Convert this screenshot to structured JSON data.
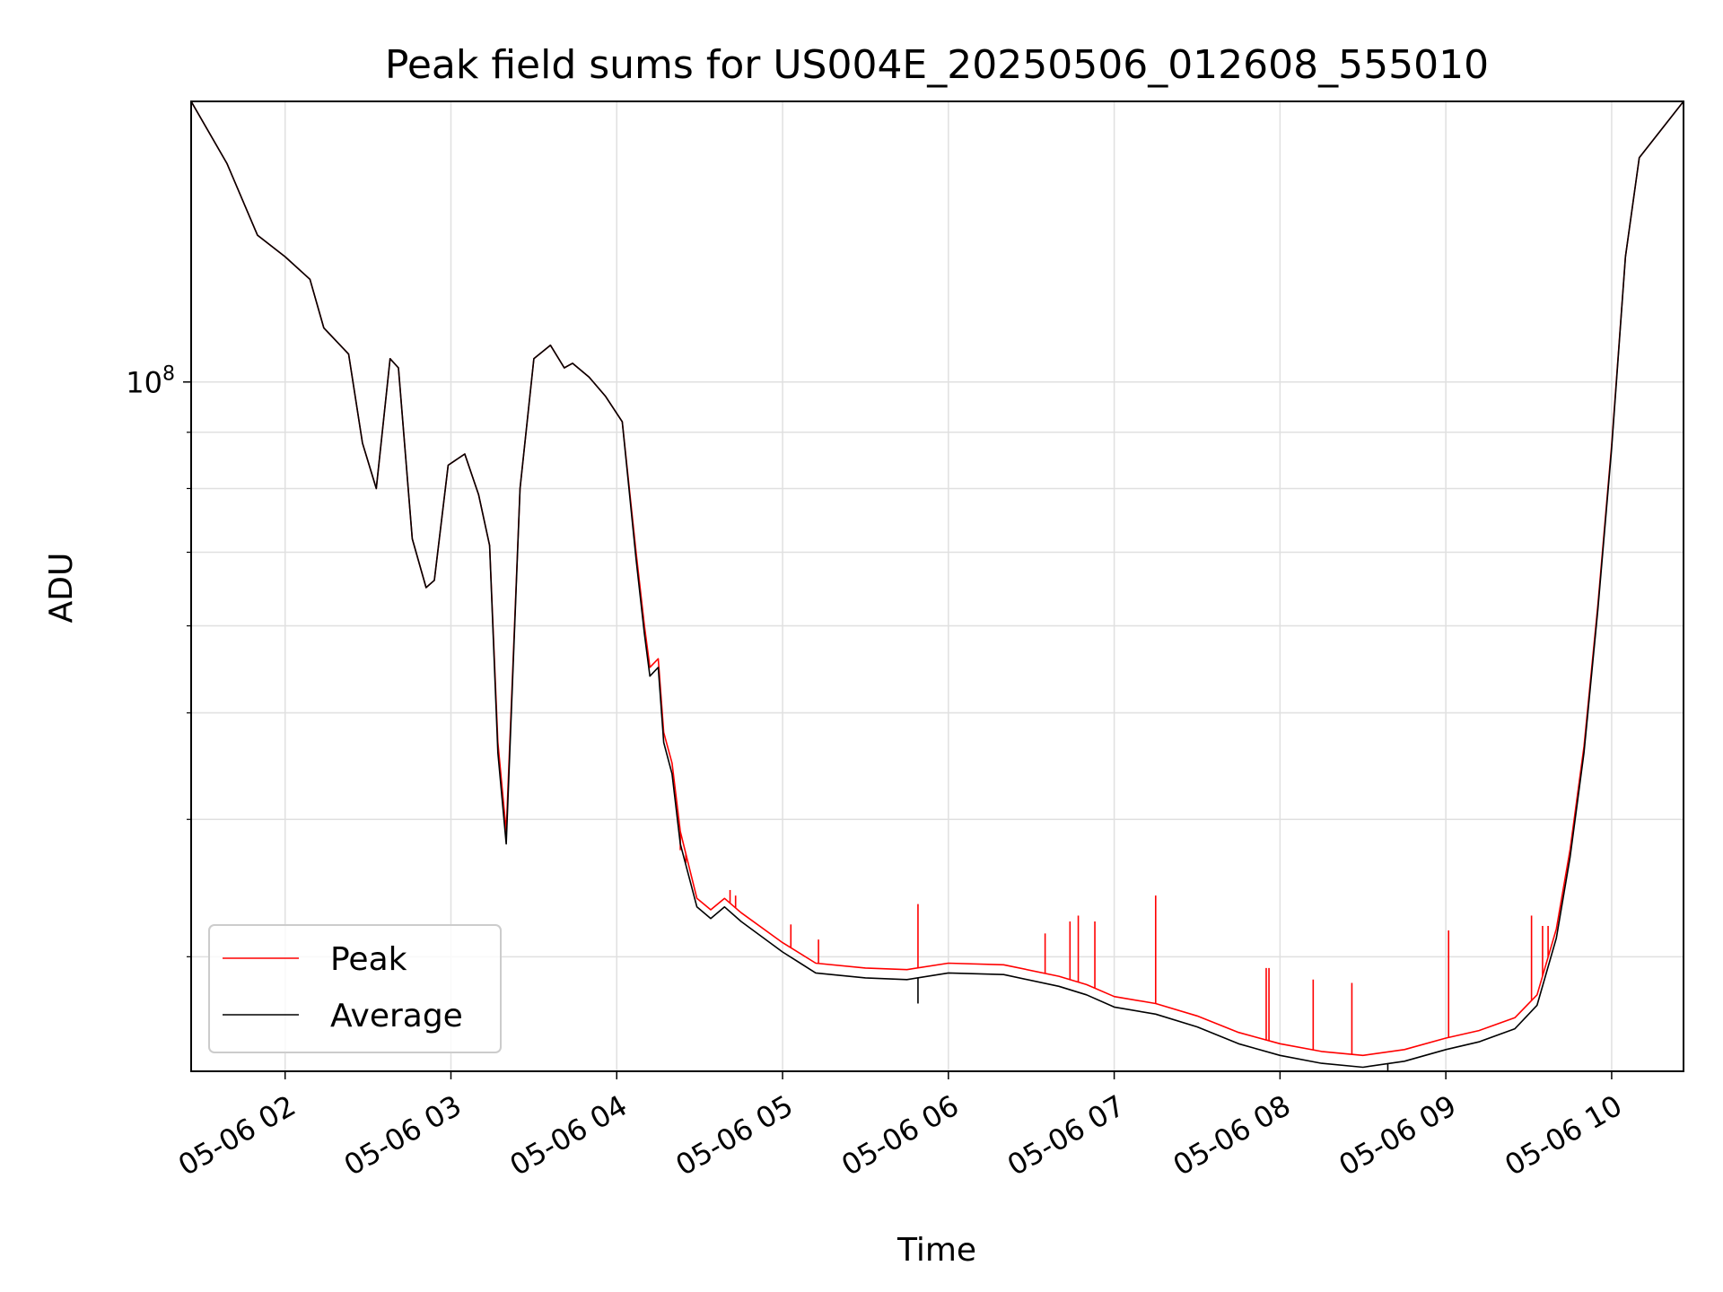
{
  "chart_data": {
    "type": "line",
    "title": "Peak field sums for US004E_20250506_012608_555010",
    "xlabel": "Time",
    "ylabel": "ADU",
    "y_scale": "log",
    "ylim": [
      23600000,
      180000000
    ],
    "xlim": [
      "2025-05-06 01:26",
      "2025-05-06 10:26"
    ],
    "x_ticks": [
      "05-06 02",
      "05-06 03",
      "05-06 04",
      "05-06 05",
      "05-06 06",
      "05-06 07",
      "05-06 08",
      "05-06 09",
      "05-06 10"
    ],
    "y_tick_label": {
      "base": "10",
      "exp": "8",
      "value": 100000000
    },
    "grid": true,
    "legend": {
      "position": "lower-left",
      "entries": [
        "Peak",
        "Average"
      ]
    },
    "colors": {
      "Peak": "#ff0000",
      "Average": "#000000"
    },
    "series": [
      {
        "name": "Average",
        "x": [
          "2025-05-06 01:26",
          "2025-05-06 01:39",
          "2025-05-06 01:50",
          "2025-05-06 02:00",
          "2025-05-06 02:09",
          "2025-05-06 02:14",
          "2025-05-06 02:23",
          "2025-05-06 02:28",
          "2025-05-06 02:33",
          "2025-05-06 02:38",
          "2025-05-06 02:41",
          "2025-05-06 02:46",
          "2025-05-06 02:51",
          "2025-05-06 02:54",
          "2025-05-06 02:59",
          "2025-05-06 03:05",
          "2025-05-06 03:10",
          "2025-05-06 03:14",
          "2025-05-06 03:17",
          "2025-05-06 03:20",
          "2025-05-06 03:25",
          "2025-05-06 03:30",
          "2025-05-06 03:36",
          "2025-05-06 03:41",
          "2025-05-06 03:44",
          "2025-05-06 03:50",
          "2025-05-06 03:56",
          "2025-05-06 04:02",
          "2025-05-06 04:07",
          "2025-05-06 04:10",
          "2025-05-06 04:12",
          "2025-05-06 04:15",
          "2025-05-06 04:17",
          "2025-05-06 04:20",
          "2025-05-06 04:23",
          "2025-05-06 04:29",
          "2025-05-06 04:34",
          "2025-05-06 04:39",
          "2025-05-06 04:45",
          "2025-05-06 05:00",
          "2025-05-06 05:12",
          "2025-05-06 05:30",
          "2025-05-06 05:45",
          "2025-05-06 06:00",
          "2025-05-06 06:20",
          "2025-05-06 06:40",
          "2025-05-06 06:50",
          "2025-05-06 07:00",
          "2025-05-06 07:15",
          "2025-05-06 07:30",
          "2025-05-06 07:45",
          "2025-05-06 08:00",
          "2025-05-06 08:15",
          "2025-05-06 08:30",
          "2025-05-06 08:45",
          "2025-05-06 09:00",
          "2025-05-06 09:12",
          "2025-05-06 09:25",
          "2025-05-06 09:33",
          "2025-05-06 09:40",
          "2025-05-06 09:45",
          "2025-05-06 09:50",
          "2025-05-06 09:55",
          "2025-05-06 10:00",
          "2025-05-06 10:05",
          "2025-05-06 10:10",
          "2025-05-06 10:26"
        ],
        "y": [
          180000000,
          158000000,
          136000000,
          130000000,
          124000000,
          112000000,
          106000000,
          88000000,
          80000000,
          105000000,
          103000000,
          72000000,
          65000000,
          66000000,
          84000000,
          86000000,
          79000000,
          71000000,
          46000000,
          38000000,
          80000000,
          105000000,
          108000000,
          103000000,
          104000000,
          101000000,
          97000000,
          92000000,
          69000000,
          59000000,
          54000000,
          55000000,
          47000000,
          44000000,
          38000000,
          33300000,
          32500000,
          33300000,
          32300000,
          30300000,
          29000000,
          28700000,
          28600000,
          29000000,
          28900000,
          28200000,
          27700000,
          27000000,
          26600000,
          25900000,
          25000000,
          24400000,
          24000000,
          23800000,
          24100000,
          24700000,
          25100000,
          25800000,
          27100000,
          31200000,
          37000000,
          46000000,
          62000000,
          87000000,
          130000000,
          160000000,
          180000000
        ]
      },
      {
        "name": "Peak",
        "x": [
          "2025-05-06 01:26",
          "2025-05-06 01:39",
          "2025-05-06 01:50",
          "2025-05-06 02:00",
          "2025-05-06 02:09",
          "2025-05-06 02:14",
          "2025-05-06 02:23",
          "2025-05-06 02:28",
          "2025-05-06 02:33",
          "2025-05-06 02:38",
          "2025-05-06 02:41",
          "2025-05-06 02:46",
          "2025-05-06 02:51",
          "2025-05-06 02:54",
          "2025-05-06 02:59",
          "2025-05-06 03:05",
          "2025-05-06 03:10",
          "2025-05-06 03:14",
          "2025-05-06 03:17",
          "2025-05-06 03:20",
          "2025-05-06 03:25",
          "2025-05-06 03:30",
          "2025-05-06 03:36",
          "2025-05-06 03:41",
          "2025-05-06 03:44",
          "2025-05-06 03:50",
          "2025-05-06 03:56",
          "2025-05-06 04:02",
          "2025-05-06 04:07",
          "2025-05-06 04:10",
          "2025-05-06 04:12",
          "2025-05-06 04:15",
          "2025-05-06 04:17",
          "2025-05-06 04:20",
          "2025-05-06 04:23",
          "2025-05-06 04:29",
          "2025-05-06 04:34",
          "2025-05-06 04:39",
          "2025-05-06 04:45",
          "2025-05-06 05:00",
          "2025-05-06 05:12",
          "2025-05-06 05:30",
          "2025-05-06 05:45",
          "2025-05-06 06:00",
          "2025-05-06 06:20",
          "2025-05-06 06:40",
          "2025-05-06 06:50",
          "2025-05-06 07:00",
          "2025-05-06 07:15",
          "2025-05-06 07:30",
          "2025-05-06 07:45",
          "2025-05-06 08:00",
          "2025-05-06 08:15",
          "2025-05-06 08:30",
          "2025-05-06 08:45",
          "2025-05-06 09:00",
          "2025-05-06 09:12",
          "2025-05-06 09:25",
          "2025-05-06 09:33",
          "2025-05-06 09:40",
          "2025-05-06 09:45",
          "2025-05-06 09:50",
          "2025-05-06 09:55",
          "2025-05-06 10:00",
          "2025-05-06 10:05",
          "2025-05-06 10:10",
          "2025-05-06 10:26"
        ],
        "y": [
          180000000,
          158000000,
          136000000,
          130000000,
          124000000,
          112000000,
          106000000,
          88000000,
          80000000,
          105000000,
          103000000,
          72000000,
          65000000,
          66000000,
          84000000,
          86000000,
          79000000,
          71000000,
          47000000,
          39000000,
          80000000,
          105000000,
          108000000,
          103000000,
          104000000,
          101000000,
          97000000,
          92000000,
          70000000,
          60000000,
          55000000,
          56000000,
          48000000,
          45000000,
          39000000,
          33900000,
          33100000,
          33900000,
          32900000,
          30900000,
          29600000,
          29300000,
          29200000,
          29600000,
          29500000,
          28800000,
          28300000,
          27600000,
          27200000,
          26500000,
          25600000,
          25000000,
          24600000,
          24400000,
          24700000,
          25300000,
          25700000,
          26400000,
          27700000,
          31800000,
          37600000,
          46600000,
          62600000,
          87600000,
          130000000,
          160000000,
          180000000
        ]
      }
    ],
    "spikes": {
      "Peak": [
        {
          "x": "2025-05-06 04:23",
          "y": 37500000
        },
        {
          "x": "2025-05-06 04:25",
          "y": 36500000
        },
        {
          "x": "2025-05-06 04:41",
          "y": 34500000
        },
        {
          "x": "2025-05-06 04:43",
          "y": 34100000
        },
        {
          "x": "2025-05-06 05:03",
          "y": 32100000
        },
        {
          "x": "2025-05-06 05:13",
          "y": 31100000
        },
        {
          "x": "2025-05-06 05:49",
          "y": 33500000
        },
        {
          "x": "2025-05-06 06:35",
          "y": 31500000
        },
        {
          "x": "2025-05-06 06:44",
          "y": 32300000
        },
        {
          "x": "2025-05-06 06:47",
          "y": 32700000
        },
        {
          "x": "2025-05-06 06:53",
          "y": 32300000
        },
        {
          "x": "2025-05-06 07:15",
          "y": 34100000
        },
        {
          "x": "2025-05-06 07:55",
          "y": 29300000
        },
        {
          "x": "2025-05-06 07:56",
          "y": 29300000
        },
        {
          "x": "2025-05-06 08:12",
          "y": 28600000
        },
        {
          "x": "2025-05-06 08:26",
          "y": 28400000
        },
        {
          "x": "2025-05-06 09:01",
          "y": 31700000
        },
        {
          "x": "2025-05-06 09:31",
          "y": 32700000
        },
        {
          "x": "2025-05-06 09:35",
          "y": 32000000
        },
        {
          "x": "2025-05-06 09:37",
          "y": 32000000
        }
      ],
      "Average": [
        {
          "x": "2025-05-06 05:49",
          "y": 27200000
        },
        {
          "x": "2025-05-06 08:39",
          "y": 23600000
        }
      ]
    }
  }
}
